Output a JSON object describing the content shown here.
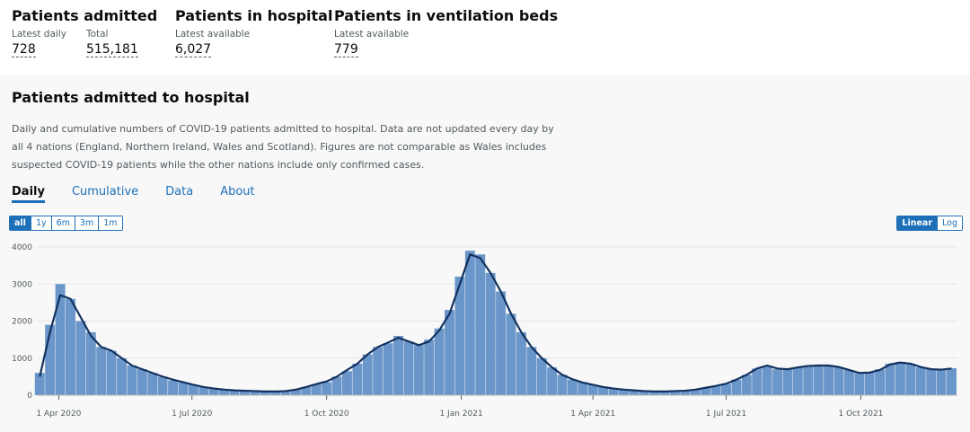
{
  "header": {
    "items": [
      {
        "title": "Patients admitted",
        "stats": [
          {
            "label": "Latest daily",
            "value": "728"
          },
          {
            "label": "Total",
            "value": "515,181"
          }
        ]
      },
      {
        "title": "Patients in hospital",
        "stats": [
          {
            "label": "Latest available",
            "value": "6,027"
          }
        ]
      },
      {
        "title": "Patients in ventilation beds",
        "stats": [
          {
            "label": "Latest available",
            "value": "779"
          }
        ]
      }
    ]
  },
  "section": {
    "title": "Patients admitted to hospital",
    "description": [
      "Daily and cumulative numbers of COVID-19 patients admitted to hospital. Data are not updated every day by",
      "all 4 nations (England, Northern Ireland, Wales and Scotland). Figures are not comparable as Wales includes",
      "suspected COVID-19 patients while the other nations include only confirmed cases."
    ],
    "tabs": [
      "Daily",
      "Cumulative",
      "Data",
      "About"
    ],
    "range_buttons": [
      "all",
      "1y",
      "6m",
      "3m",
      "1m"
    ],
    "scale_buttons": [
      "Linear",
      "Log"
    ]
  },
  "chart_data": {
    "type": "bar",
    "x": [
      "2020-03-19",
      "2020-03-26",
      "2020-04-02",
      "2020-04-09",
      "2020-04-16",
      "2020-04-23",
      "2020-04-30",
      "2020-05-07",
      "2020-05-14",
      "2020-05-21",
      "2020-05-28",
      "2020-06-04",
      "2020-06-11",
      "2020-06-18",
      "2020-06-25",
      "2020-07-02",
      "2020-07-09",
      "2020-07-16",
      "2020-07-23",
      "2020-07-30",
      "2020-08-06",
      "2020-08-13",
      "2020-08-20",
      "2020-08-27",
      "2020-09-03",
      "2020-09-10",
      "2020-09-17",
      "2020-09-24",
      "2020-10-01",
      "2020-10-08",
      "2020-10-15",
      "2020-10-22",
      "2020-10-29",
      "2020-11-05",
      "2020-11-12",
      "2020-11-19",
      "2020-11-26",
      "2020-12-03",
      "2020-12-10",
      "2020-12-17",
      "2020-12-24",
      "2020-12-31",
      "2021-01-07",
      "2021-01-14",
      "2021-01-21",
      "2021-01-28",
      "2021-02-04",
      "2021-02-11",
      "2021-02-18",
      "2021-02-25",
      "2021-03-04",
      "2021-03-11",
      "2021-03-18",
      "2021-03-25",
      "2021-04-01",
      "2021-04-08",
      "2021-04-15",
      "2021-04-22",
      "2021-04-29",
      "2021-05-06",
      "2021-05-13",
      "2021-05-20",
      "2021-05-27",
      "2021-06-03",
      "2021-06-10",
      "2021-06-17",
      "2021-06-24",
      "2021-07-01",
      "2021-07-08",
      "2021-07-15",
      "2021-07-22",
      "2021-07-29",
      "2021-08-05",
      "2021-08-12",
      "2021-08-19",
      "2021-08-26",
      "2021-09-02",
      "2021-09-09",
      "2021-09-16",
      "2021-09-23",
      "2021-09-30",
      "2021-10-07",
      "2021-10-14",
      "2021-10-21",
      "2021-10-28",
      "2021-11-04",
      "2021-11-11",
      "2021-11-18",
      "2021-11-25",
      "2021-12-02"
    ],
    "series": [
      {
        "type": "bar",
        "color": "#6b96c9",
        "values": [
          600,
          1900,
          3000,
          2600,
          2000,
          1700,
          1300,
          1200,
          1000,
          800,
          700,
          600,
          500,
          400,
          350,
          280,
          220,
          180,
          150,
          130,
          120,
          110,
          100,
          100,
          110,
          150,
          220,
          300,
          350,
          500,
          650,
          850,
          1100,
          1300,
          1400,
          1600,
          1450,
          1350,
          1500,
          1800,
          2300,
          3200,
          3900,
          3800,
          3300,
          2800,
          2200,
          1700,
          1300,
          1000,
          750,
          550,
          420,
          350,
          280,
          220,
          180,
          150,
          130,
          110,
          100,
          100,
          110,
          120,
          150,
          200,
          250,
          300,
          420,
          550,
          720,
          800,
          700,
          700,
          750,
          800,
          800,
          800,
          750,
          680,
          600,
          620,
          700,
          850,
          900,
          850,
          750,
          700,
          700,
          730
        ]
      },
      {
        "type": "line",
        "color": "#12315e",
        "values": [
          500,
          1700,
          2700,
          2600,
          2100,
          1600,
          1300,
          1200,
          1000,
          800,
          700,
          600,
          500,
          420,
          350,
          280,
          220,
          180,
          150,
          130,
          120,
          110,
          100,
          100,
          110,
          150,
          220,
          300,
          370,
          500,
          680,
          850,
          1100,
          1300,
          1420,
          1550,
          1450,
          1350,
          1450,
          1750,
          2200,
          3000,
          3800,
          3700,
          3300,
          2800,
          2200,
          1700,
          1300,
          1000,
          750,
          550,
          430,
          340,
          280,
          220,
          180,
          150,
          130,
          110,
          100,
          100,
          110,
          120,
          150,
          200,
          250,
          310,
          420,
          550,
          720,
          800,
          720,
          700,
          750,
          790,
          800,
          800,
          760,
          680,
          600,
          610,
          680,
          830,
          880,
          850,
          760,
          700,
          690,
          720
        ]
      }
    ],
    "xlim": [
      "2020-03-17",
      "2021-12-06"
    ],
    "xticks": [
      {
        "value": "2020-04-01",
        "label": "1 Apr 2020"
      },
      {
        "value": "2020-07-01",
        "label": "1 Jul 2020"
      },
      {
        "value": "2020-10-01",
        "label": "1 Oct 2020"
      },
      {
        "value": "2021-01-01",
        "label": "1 Jan 2021"
      },
      {
        "value": "2021-04-01",
        "label": "1 Apr 2021"
      },
      {
        "value": "2021-07-01",
        "label": "1 Jul 2021"
      },
      {
        "value": "2021-10-01",
        "label": "1 Oct 2021"
      }
    ],
    "ylim": [
      0,
      4000
    ],
    "yticks": [
      0,
      1000,
      2000,
      3000,
      4000
    ],
    "grid": true
  }
}
